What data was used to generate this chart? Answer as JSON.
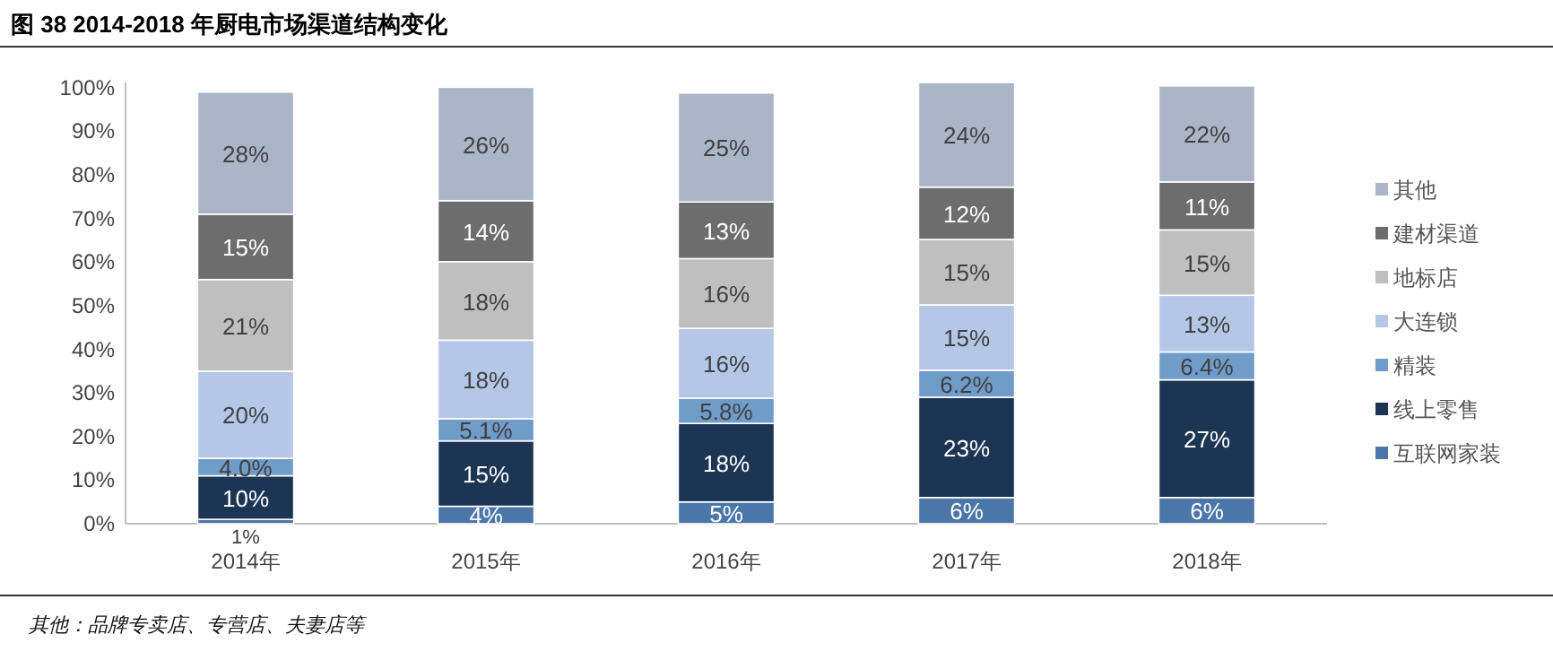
{
  "chart_data": {
    "type": "bar",
    "stacked": true,
    "title": "图 38 2014-2018 年厨电市场渠道结构变化",
    "categories": [
      "2014年",
      "2015年",
      "2016年",
      "2017年",
      "2018年"
    ],
    "series": [
      {
        "name": "互联网家装",
        "color": "#4a76a8",
        "values": [
          1,
          4,
          5,
          6,
          6
        ],
        "value_labels": [
          "1%",
          "4%",
          "5%",
          "6%",
          "6%"
        ]
      },
      {
        "name": "线上零售",
        "color": "#1c3553",
        "values": [
          10,
          15,
          18,
          23,
          27
        ],
        "value_labels": [
          "10%",
          "15%",
          "18%",
          "23%",
          "27%"
        ]
      },
      {
        "name": "精装",
        "color": "#6f9cc9",
        "values": [
          4.0,
          5.1,
          5.8,
          6.2,
          6.4
        ],
        "value_labels": [
          "4.0%",
          "5.1%",
          "5.8%",
          "6.2%",
          "6.4%"
        ]
      },
      {
        "name": "大连锁",
        "color": "#b4c7e7",
        "values": [
          20,
          18,
          16,
          15,
          13
        ],
        "value_labels": [
          "20%",
          "18%",
          "16%",
          "15%",
          "13%"
        ]
      },
      {
        "name": "地标店",
        "color": "#bfbfbf",
        "values": [
          21,
          18,
          16,
          15,
          15
        ],
        "value_labels": [
          "21%",
          "18%",
          "16%",
          "15%",
          "15%"
        ]
      },
      {
        "name": "建材渠道",
        "color": "#6d6d6d",
        "values": [
          15,
          14,
          13,
          12,
          11
        ],
        "value_labels": [
          "15%",
          "14%",
          "13%",
          "12%",
          "11%"
        ]
      },
      {
        "name": "其他",
        "color": "#abb5c8",
        "values": [
          28,
          26,
          25,
          24,
          22
        ],
        "value_labels": [
          "28%",
          "26%",
          "25%",
          "24%",
          "22%"
        ]
      }
    ],
    "ylim": [
      0,
      101.2
    ],
    "yticks": [
      {
        "value": 0,
        "label": "0%"
      },
      {
        "value": 10,
        "label": "10%"
      },
      {
        "value": 20,
        "label": "20%"
      },
      {
        "value": 30,
        "label": "30%"
      },
      {
        "value": 40,
        "label": "40%"
      },
      {
        "value": 50,
        "label": "50%"
      },
      {
        "value": 60,
        "label": "60%"
      },
      {
        "value": 70,
        "label": "70%"
      },
      {
        "value": 80,
        "label": "80%"
      },
      {
        "value": 90,
        "label": "90%"
      },
      {
        "value": 100,
        "label": "100%"
      }
    ],
    "grid": false,
    "legend": "right",
    "annotations": [
      "其他：品牌专卖店、专营店、夫妻店等"
    ]
  }
}
